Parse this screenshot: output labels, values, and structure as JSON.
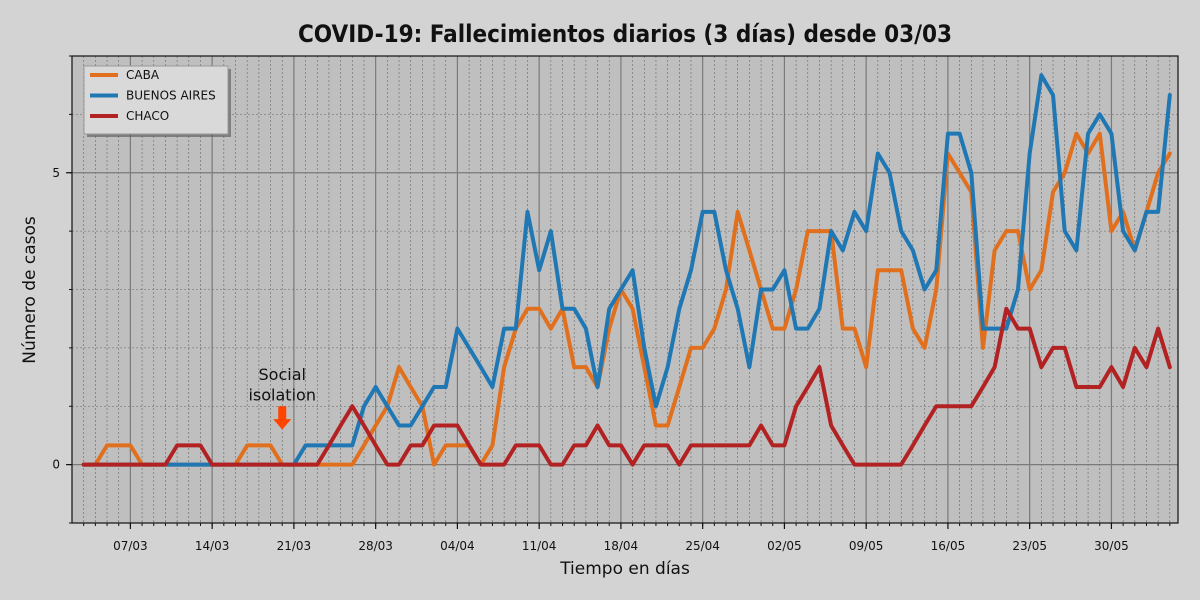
{
  "chart_data": {
    "type": "line",
    "title": "COVID-19: Fallecimientos diarios (3 días) desde 03/03",
    "xlabel": "Tiempo en días",
    "ylabel": "Número de casos",
    "ylim": [
      -1,
      7
    ],
    "y_ticks": [
      0,
      5
    ],
    "x_start": "03/03",
    "x_ticks": [
      {
        "label": "07/03",
        "day": 4
      },
      {
        "label": "14/03",
        "day": 11
      },
      {
        "label": "21/03",
        "day": 18
      },
      {
        "label": "28/03",
        "day": 25
      },
      {
        "label": "04/04",
        "day": 32
      },
      {
        "label": "11/04",
        "day": 39
      },
      {
        "label": "18/04",
        "day": 46
      },
      {
        "label": "25/04",
        "day": 53
      },
      {
        "label": "02/05",
        "day": 60
      },
      {
        "label": "09/05",
        "day": 67
      },
      {
        "label": "16/05",
        "day": 74
      },
      {
        "label": "23/05",
        "day": 81
      },
      {
        "label": "30/05",
        "day": 88
      }
    ],
    "grid": true,
    "legend_position": "top-left",
    "series": [
      {
        "name": "CABA",
        "color": "#e0701e",
        "values": [
          0,
          0,
          0.33,
          0.33,
          0.33,
          0,
          0,
          0,
          0,
          0,
          0,
          0,
          0,
          0,
          0.33,
          0.33,
          0.33,
          0,
          0,
          0,
          0,
          0,
          0,
          0,
          0.33,
          0.67,
          1,
          1.67,
          1.33,
          1,
          0,
          0.33,
          0.33,
          0.33,
          0,
          0.33,
          1.67,
          2.33,
          2.67,
          2.67,
          2.33,
          2.67,
          1.67,
          1.67,
          1.33,
          2.33,
          3,
          2.67,
          1.67,
          0.67,
          0.67,
          1.33,
          2,
          2,
          2.33,
          3,
          4.33,
          3.67,
          3,
          2.33,
          2.33,
          3,
          4,
          4,
          4,
          2.33,
          2.33,
          1.67,
          3.33,
          3.33,
          3.33,
          2.33,
          2,
          3,
          5.33,
          5,
          4.67,
          2,
          3.67,
          4,
          4,
          3,
          3.33,
          4.67,
          5,
          5.67,
          5.33,
          5.67,
          4,
          4.33,
          3.67,
          4.33,
          5,
          5.33
        ]
      },
      {
        "name": "BUENOS AIRES",
        "color": "#1f77b4",
        "values": [
          0,
          0,
          0,
          0,
          0,
          0,
          0,
          0,
          0,
          0,
          0,
          0,
          0,
          0,
          0,
          0,
          0,
          0,
          0,
          0.33,
          0.33,
          0.33,
          0.33,
          0.33,
          1,
          1.33,
          1,
          0.67,
          0.67,
          1,
          1.33,
          1.33,
          2.33,
          2,
          1.67,
          1.33,
          2.33,
          2.33,
          4.33,
          3.33,
          4,
          2.67,
          2.67,
          2.33,
          1.33,
          2.67,
          3,
          3.33,
          2,
          1,
          1.67,
          2.67,
          3.33,
          4.33,
          4.33,
          3.33,
          2.67,
          1.67,
          3,
          3,
          3.33,
          2.33,
          2.33,
          2.67,
          4,
          3.67,
          4.33,
          4,
          5.33,
          5,
          4,
          3.67,
          3,
          3.33,
          5.67,
          5.67,
          5,
          2.33,
          2.33,
          2.33,
          3,
          5.33,
          6.67,
          6.33,
          4,
          3.67,
          5.67,
          6,
          5.67,
          4,
          3.67,
          4.33,
          4.33,
          6.33
        ]
      },
      {
        "name": "CHACO",
        "color": "#b22222",
        "values": [
          0,
          0,
          0,
          0,
          0,
          0,
          0,
          0,
          0.33,
          0.33,
          0.33,
          0,
          0,
          0,
          0,
          0,
          0,
          0,
          0,
          0,
          0,
          0.33,
          0.67,
          1,
          0.67,
          0.33,
          0,
          0,
          0.33,
          0.33,
          0.67,
          0.67,
          0.67,
          0.33,
          0,
          0,
          0,
          0.33,
          0.33,
          0.33,
          0,
          0,
          0.33,
          0.33,
          0.67,
          0.33,
          0.33,
          0,
          0.33,
          0.33,
          0.33,
          0,
          0.33,
          0.33,
          0.33,
          0.33,
          0.33,
          0.33,
          0.67,
          0.33,
          0.33,
          1,
          1.33,
          1.67,
          0.67,
          0.33,
          0,
          0,
          0,
          0,
          0,
          0.33,
          0.67,
          1,
          1,
          1,
          1,
          1.33,
          1.67,
          2.67,
          2.33,
          2.33,
          1.67,
          2,
          2,
          1.33,
          1.33,
          1.33,
          1.67,
          1.33,
          2,
          1.67,
          2.33,
          1.67
        ]
      }
    ],
    "annotation": {
      "line1": "Social",
      "line2": "isolation",
      "day": 17,
      "arrow_color": "#ff4500"
    }
  }
}
